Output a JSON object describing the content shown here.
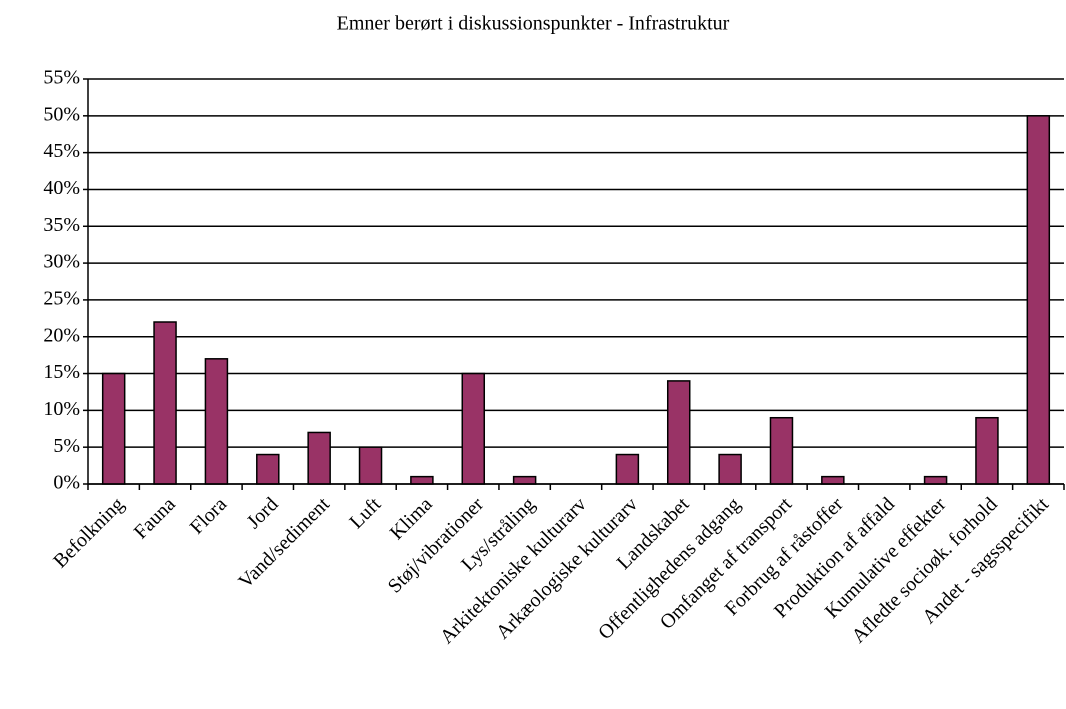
{
  "chart_data": {
    "type": "bar",
    "title": "Emner berørt i diskussionspunkter - Infrastruktur",
    "categories": [
      "Befolkning",
      "Fauna",
      "Flora",
      "Jord",
      "Vand/sediment",
      "Luft",
      "Klima",
      "Støj/vibrationer",
      "Lys/stråling",
      "Arkitektoniske kulturarv",
      "Arkæologiske kulturarv",
      "Landskabet",
      "Offentlighedens adgang",
      "Omfanget af transport",
      "Forbrug af råstoffer",
      "Produktion af affald",
      "Kumulative effekter",
      "Afledte socioøk. forhold",
      "Andet - sagsspecifikt"
    ],
    "values": [
      15,
      22,
      17,
      4,
      7,
      5,
      1,
      15,
      1,
      0,
      4,
      14,
      4,
      9,
      1,
      0,
      1,
      9,
      50
    ],
    "color": "#993366",
    "ylim": [
      0,
      55
    ],
    "yticks": [
      {
        "value": 0,
        "label": "0%"
      },
      {
        "value": 5,
        "label": "5%"
      },
      {
        "value": 10,
        "label": "10%"
      },
      {
        "value": 15,
        "label": "15%"
      },
      {
        "value": 20,
        "label": "20%"
      },
      {
        "value": 25,
        "label": "25%"
      },
      {
        "value": 30,
        "label": "30%"
      },
      {
        "value": 35,
        "label": "35%"
      },
      {
        "value": 40,
        "label": "40%"
      },
      {
        "value": 45,
        "label": "45%"
      },
      {
        "value": 50,
        "label": "50%"
      },
      {
        "value": 55,
        "label": "55%"
      }
    ],
    "grid": true
  }
}
